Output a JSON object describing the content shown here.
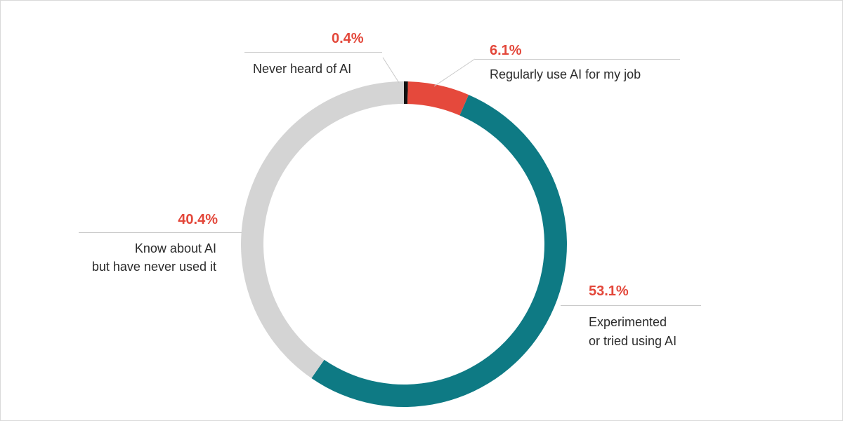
{
  "chart_data": {
    "type": "pie",
    "variant": "donut",
    "title": "",
    "slices": [
      {
        "label": "Never heard of AI",
        "value": 0.4,
        "value_label": "0.4%",
        "color": "#111111"
      },
      {
        "label": "Regularly use AI for my job",
        "value": 6.1,
        "value_label": "6.1%",
        "color": "#e5493c"
      },
      {
        "label": "Experimented or tried using AI",
        "label_lines": [
          "Experimented",
          "or tried using AI"
        ],
        "value": 53.1,
        "value_label": "53.1%",
        "color": "#0e7a84"
      },
      {
        "label": "Know about AI but have never used it",
        "label_lines": [
          "Know about AI",
          "but have never used it"
        ],
        "value": 40.4,
        "value_label": "40.4%",
        "color": "#d4d4d4"
      }
    ],
    "value_color": "#e3473a",
    "legend": "none"
  }
}
